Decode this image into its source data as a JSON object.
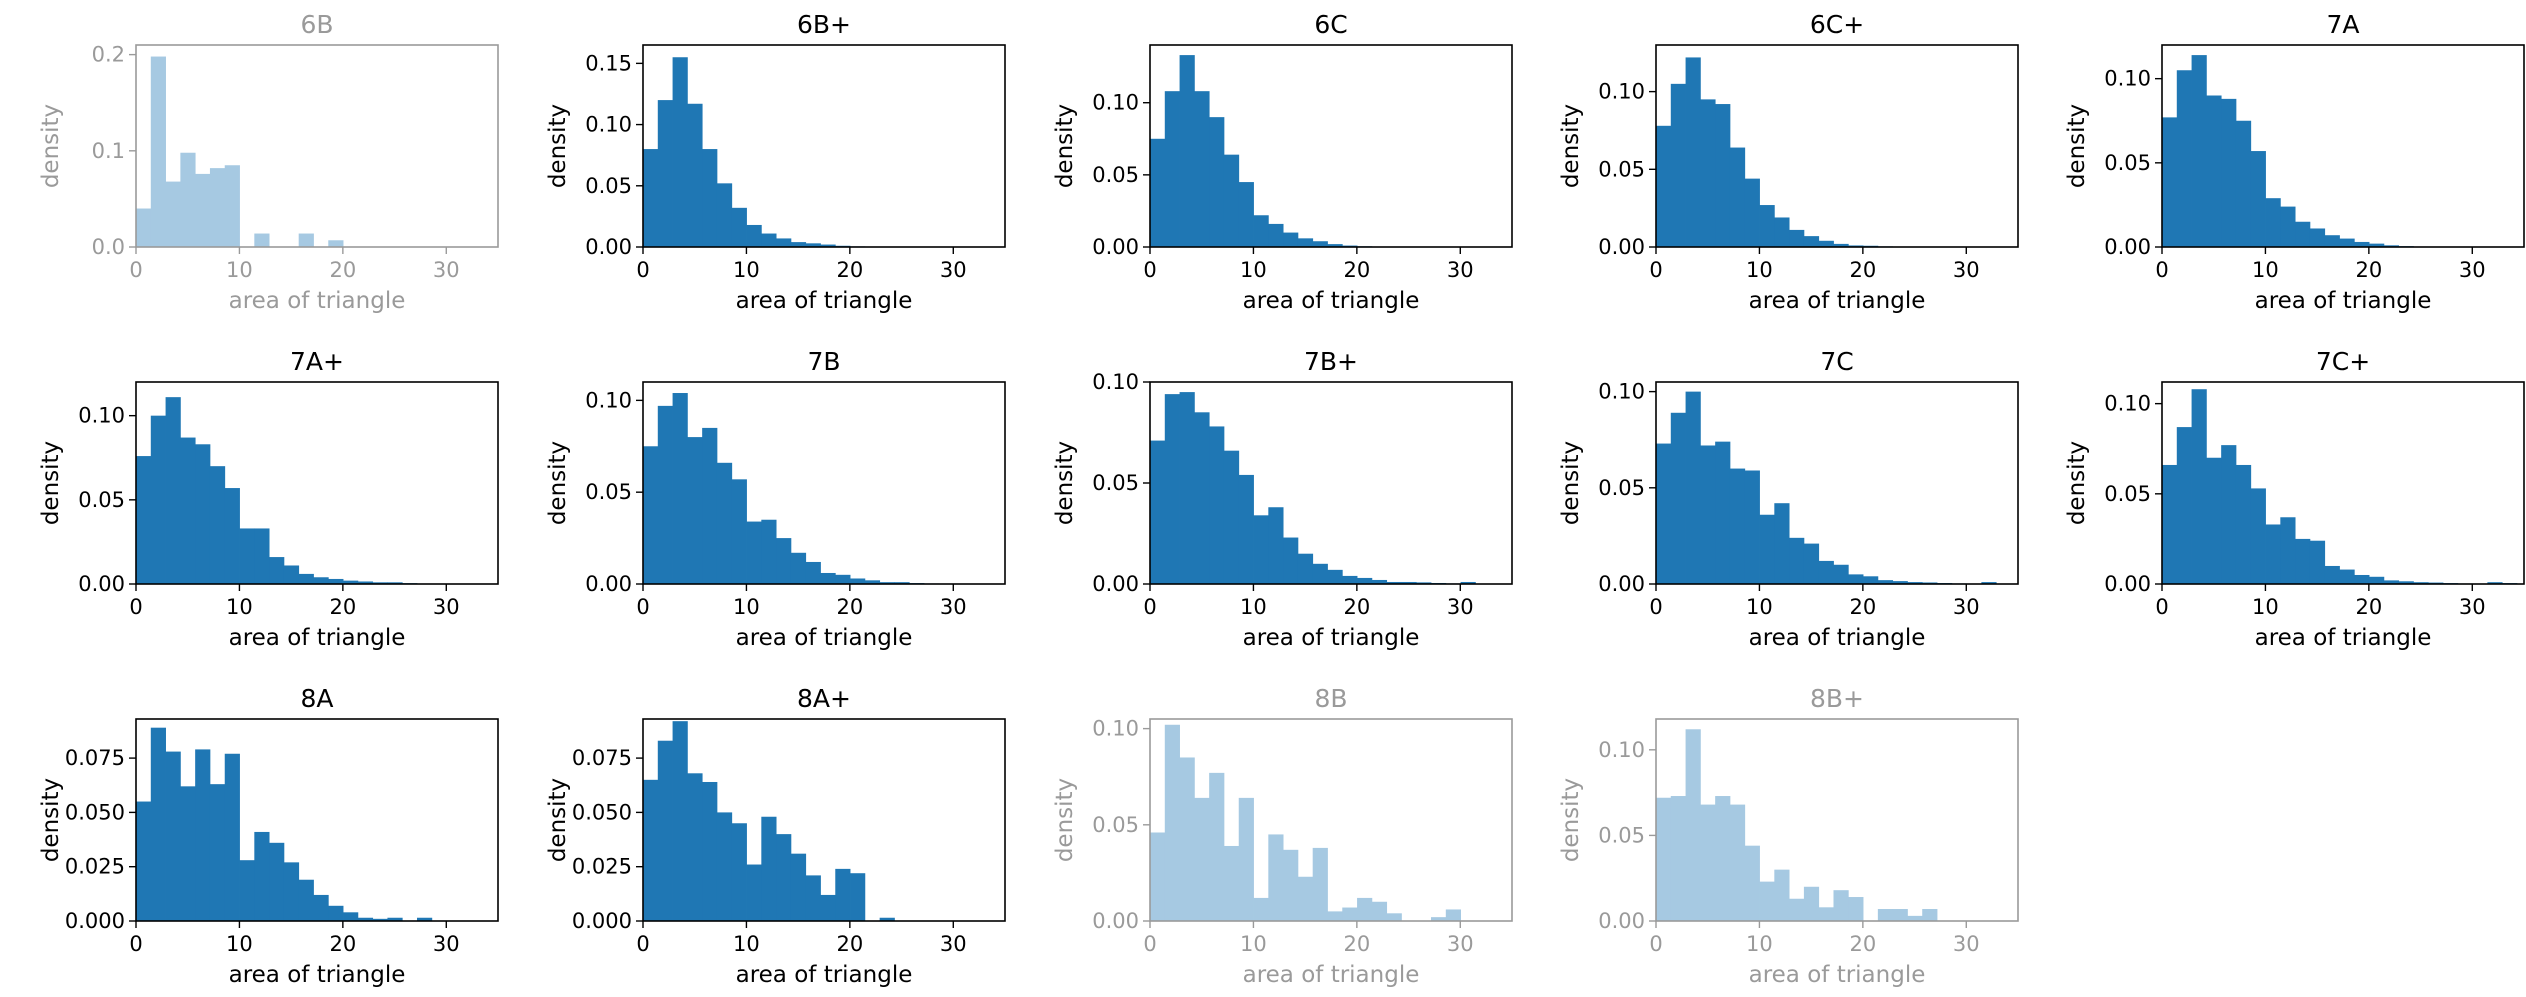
{
  "chart_data": [
    {
      "type": "bar",
      "title": "6B",
      "xlabel": "area of triangle",
      "ylabel": "density",
      "xlim": [
        0,
        35
      ],
      "ylim": [
        0,
        0.21
      ],
      "xticks": [
        0,
        10,
        20,
        30
      ],
      "yticks": [
        0.0,
        0.1,
        0.2
      ],
      "ytick_labels": [
        "0.0",
        "0.1",
        "0.2"
      ],
      "faded": true,
      "color": "#a6c9e2",
      "bin_width": 1.43,
      "values": [
        0.04,
        0.198,
        0.068,
        0.098,
        0.076,
        0.082,
        0.085,
        0.0,
        0.014,
        0.0,
        0.0,
        0.014,
        0.0,
        0.007,
        0.0,
        0.0,
        0.0,
        0.0,
        0.0,
        0.0,
        0.0,
        0.0,
        0.0,
        0.0
      ]
    },
    {
      "type": "bar",
      "title": "6B+",
      "xlabel": "area of triangle",
      "ylabel": "density",
      "xlim": [
        0,
        35
      ],
      "ylim": [
        0,
        0.165
      ],
      "xticks": [
        0,
        10,
        20,
        30
      ],
      "yticks": [
        0.0,
        0.05,
        0.1,
        0.15
      ],
      "ytick_labels": [
        "0.00",
        "0.05",
        "0.10",
        "0.15"
      ],
      "faded": false,
      "color": "#1f77b4",
      "bin_width": 1.43,
      "values": [
        0.08,
        0.12,
        0.155,
        0.117,
        0.08,
        0.052,
        0.032,
        0.018,
        0.011,
        0.007,
        0.004,
        0.003,
        0.002,
        0.001,
        0.0005,
        0.0003,
        0.0,
        0.0,
        0.0,
        0.0,
        0.0,
        0.0,
        0.0,
        0.0
      ]
    },
    {
      "type": "bar",
      "title": "6C",
      "xlabel": "area of triangle",
      "ylabel": "density",
      "xlim": [
        0,
        35
      ],
      "ylim": [
        0,
        0.14
      ],
      "xticks": [
        0,
        10,
        20,
        30
      ],
      "yticks": [
        0.0,
        0.05,
        0.1
      ],
      "ytick_labels": [
        "0.00",
        "0.05",
        "0.10"
      ],
      "faded": false,
      "color": "#1f77b4",
      "bin_width": 1.43,
      "values": [
        0.075,
        0.108,
        0.133,
        0.108,
        0.09,
        0.064,
        0.045,
        0.022,
        0.016,
        0.01,
        0.006,
        0.004,
        0.002,
        0.001,
        0.0005,
        0.0003,
        0.0,
        0.0,
        0.0,
        0.0,
        0.0,
        0.0,
        0.0,
        0.0
      ]
    },
    {
      "type": "bar",
      "title": "6C+",
      "xlabel": "area of triangle",
      "ylabel": "density",
      "xlim": [
        0,
        35
      ],
      "ylim": [
        0,
        0.13
      ],
      "xticks": [
        0,
        10,
        20,
        30
      ],
      "yticks": [
        0.0,
        0.05,
        0.1
      ],
      "ytick_labels": [
        "0.00",
        "0.05",
        "0.10"
      ],
      "faded": false,
      "color": "#1f77b4",
      "bin_width": 1.43,
      "values": [
        0.078,
        0.105,
        0.122,
        0.095,
        0.092,
        0.064,
        0.044,
        0.027,
        0.019,
        0.011,
        0.007,
        0.004,
        0.002,
        0.001,
        0.0008,
        0.0004,
        0.0003,
        0.0,
        0.0,
        0.0,
        0.0,
        0.0,
        0.0,
        0.0
      ]
    },
    {
      "type": "bar",
      "title": "7A",
      "xlabel": "area of triangle",
      "ylabel": "density",
      "xlim": [
        0,
        35
      ],
      "ylim": [
        0,
        0.12
      ],
      "xticks": [
        0,
        10,
        20,
        30
      ],
      "yticks": [
        0.0,
        0.05,
        0.1
      ],
      "ytick_labels": [
        "0.00",
        "0.05",
        "0.10"
      ],
      "faded": false,
      "color": "#1f77b4",
      "bin_width": 1.43,
      "values": [
        0.077,
        0.105,
        0.114,
        0.09,
        0.088,
        0.075,
        0.057,
        0.029,
        0.024,
        0.015,
        0.011,
        0.007,
        0.005,
        0.003,
        0.002,
        0.001,
        0.0005,
        0.0003,
        0.0,
        0.0,
        0.0,
        0.0,
        0.0,
        0.0
      ]
    },
    {
      "type": "bar",
      "title": "7A+",
      "xlabel": "area of triangle",
      "ylabel": "density",
      "xlim": [
        0,
        35
      ],
      "ylim": [
        0,
        0.12
      ],
      "xticks": [
        0,
        10,
        20,
        30
      ],
      "yticks": [
        0.0,
        0.05,
        0.1
      ],
      "ytick_labels": [
        "0.00",
        "0.05",
        "0.10"
      ],
      "faded": false,
      "color": "#1f77b4",
      "bin_width": 1.43,
      "values": [
        0.076,
        0.1,
        0.111,
        0.087,
        0.083,
        0.07,
        0.057,
        0.033,
        0.033,
        0.016,
        0.011,
        0.006,
        0.004,
        0.003,
        0.002,
        0.0015,
        0.001,
        0.001,
        0.0005,
        0.0003,
        0.0,
        0.0,
        0.0,
        0.0
      ]
    },
    {
      "type": "bar",
      "title": "7B",
      "xlabel": "area of triangle",
      "ylabel": "density",
      "xlim": [
        0,
        35
      ],
      "ylim": [
        0,
        0.11
      ],
      "xticks": [
        0,
        10,
        20,
        30
      ],
      "yticks": [
        0.0,
        0.05,
        0.1
      ],
      "ytick_labels": [
        "0.00",
        "0.05",
        "0.10"
      ],
      "faded": false,
      "color": "#1f77b4",
      "bin_width": 1.43,
      "values": [
        0.075,
        0.097,
        0.104,
        0.08,
        0.085,
        0.066,
        0.057,
        0.034,
        0.035,
        0.025,
        0.017,
        0.012,
        0.006,
        0.005,
        0.003,
        0.002,
        0.001,
        0.001,
        0.0005,
        0.0003,
        0.0,
        0.0,
        0.0,
        0.0
      ]
    },
    {
      "type": "bar",
      "title": "7B+",
      "xlabel": "area of triangle",
      "ylabel": "density",
      "xlim": [
        0,
        35
      ],
      "ylim": [
        0,
        0.1
      ],
      "xticks": [
        0,
        10,
        20,
        30
      ],
      "yticks": [
        0.0,
        0.05,
        0.1
      ],
      "ytick_labels": [
        "0.00",
        "0.05",
        "0.10"
      ],
      "faded": false,
      "color": "#1f77b4",
      "bin_width": 1.43,
      "values": [
        0.071,
        0.094,
        0.095,
        0.085,
        0.078,
        0.066,
        0.054,
        0.034,
        0.038,
        0.023,
        0.015,
        0.01,
        0.007,
        0.004,
        0.003,
        0.002,
        0.001,
        0.001,
        0.0008,
        0.0005,
        0.0003,
        0.001,
        0.0,
        0.0
      ]
    },
    {
      "type": "bar",
      "title": "7C",
      "xlabel": "area of triangle",
      "ylabel": "density",
      "xlim": [
        0,
        35
      ],
      "ylim": [
        0,
        0.105
      ],
      "xticks": [
        0,
        10,
        20,
        30
      ],
      "yticks": [
        0.0,
        0.05,
        0.1
      ],
      "ytick_labels": [
        "0.00",
        "0.05",
        "0.10"
      ],
      "faded": false,
      "color": "#1f77b4",
      "bin_width": 1.43,
      "values": [
        0.073,
        0.089,
        0.1,
        0.072,
        0.074,
        0.06,
        0.059,
        0.036,
        0.042,
        0.024,
        0.021,
        0.012,
        0.01,
        0.005,
        0.004,
        0.002,
        0.0015,
        0.001,
        0.0008,
        0.0005,
        0.0003,
        0.0002,
        0.001,
        0.0
      ]
    },
    {
      "type": "bar",
      "title": "7C+",
      "xlabel": "area of triangle",
      "ylabel": "density",
      "xlim": [
        0,
        35
      ],
      "ylim": [
        0,
        0.112
      ],
      "xticks": [
        0,
        10,
        20,
        30
      ],
      "yticks": [
        0.0,
        0.05,
        0.1
      ],
      "ytick_labels": [
        "0.00",
        "0.05",
        "0.10"
      ],
      "faded": false,
      "color": "#1f77b4",
      "bin_width": 1.43,
      "values": [
        0.066,
        0.087,
        0.108,
        0.07,
        0.077,
        0.066,
        0.053,
        0.033,
        0.037,
        0.025,
        0.024,
        0.01,
        0.008,
        0.005,
        0.004,
        0.002,
        0.0015,
        0.001,
        0.0008,
        0.0005,
        0.0003,
        0.0002,
        0.001,
        0.0005
      ]
    },
    {
      "type": "bar",
      "title": "8A",
      "xlabel": "area of triangle",
      "ylabel": "density",
      "xlim": [
        0,
        35
      ],
      "ylim": [
        0,
        0.093
      ],
      "xticks": [
        0,
        10,
        20,
        30
      ],
      "yticks": [
        0.0,
        0.025,
        0.05,
        0.075
      ],
      "ytick_labels": [
        "0.000",
        "0.025",
        "0.050",
        "0.075"
      ],
      "faded": false,
      "color": "#1f77b4",
      "bin_width": 1.43,
      "values": [
        0.055,
        0.089,
        0.078,
        0.062,
        0.079,
        0.063,
        0.077,
        0.028,
        0.041,
        0.036,
        0.027,
        0.019,
        0.012,
        0.007,
        0.004,
        0.0015,
        0.001,
        0.0015,
        0.0,
        0.0015,
        0.0,
        0.0,
        0.0,
        0.0
      ]
    },
    {
      "type": "bar",
      "title": "8A+",
      "xlabel": "area of triangle",
      "ylabel": "density",
      "xlim": [
        0,
        35
      ],
      "ylim": [
        0,
        0.093
      ],
      "xticks": [
        0,
        10,
        20,
        30
      ],
      "yticks": [
        0.0,
        0.025,
        0.05,
        0.075
      ],
      "ytick_labels": [
        "0.000",
        "0.025",
        "0.050",
        "0.075"
      ],
      "faded": false,
      "color": "#1f77b4",
      "bin_width": 1.43,
      "values": [
        0.065,
        0.083,
        0.092,
        0.068,
        0.064,
        0.05,
        0.045,
        0.026,
        0.048,
        0.04,
        0.031,
        0.021,
        0.012,
        0.024,
        0.022,
        0.0,
        0.0015,
        0.0,
        0.0,
        0.0,
        0.0,
        0.0,
        0.0,
        0.0
      ]
    },
    {
      "type": "bar",
      "title": "8B",
      "xlabel": "area of triangle",
      "ylabel": "density",
      "xlim": [
        0,
        35
      ],
      "ylim": [
        0,
        0.105
      ],
      "xticks": [
        0,
        10,
        20,
        30
      ],
      "yticks": [
        0.0,
        0.05,
        0.1
      ],
      "ytick_labels": [
        "0.00",
        "0.05",
        "0.10"
      ],
      "faded": true,
      "color": "#a6c9e2",
      "bin_width": 1.43,
      "values": [
        0.046,
        0.102,
        0.085,
        0.064,
        0.077,
        0.039,
        0.064,
        0.012,
        0.045,
        0.037,
        0.023,
        0.038,
        0.005,
        0.007,
        0.012,
        0.01,
        0.004,
        0.0,
        0.0,
        0.002,
        0.006,
        0.0,
        0.0,
        0.0
      ]
    },
    {
      "type": "bar",
      "title": "8B+",
      "xlabel": "area of triangle",
      "ylabel": "density",
      "xlim": [
        0,
        35
      ],
      "ylim": [
        0,
        0.118
      ],
      "xticks": [
        0,
        10,
        20,
        30
      ],
      "yticks": [
        0.0,
        0.05,
        0.1
      ],
      "ytick_labels": [
        "0.00",
        "0.05",
        "0.10"
      ],
      "faded": true,
      "color": "#a6c9e2",
      "bin_width": 1.43,
      "values": [
        0.072,
        0.073,
        0.112,
        0.068,
        0.073,
        0.068,
        0.044,
        0.023,
        0.03,
        0.013,
        0.02,
        0.008,
        0.018,
        0.014,
        0.0,
        0.007,
        0.007,
        0.003,
        0.007,
        0.0,
        0.0,
        0.0,
        0.0,
        0.0
      ]
    }
  ]
}
